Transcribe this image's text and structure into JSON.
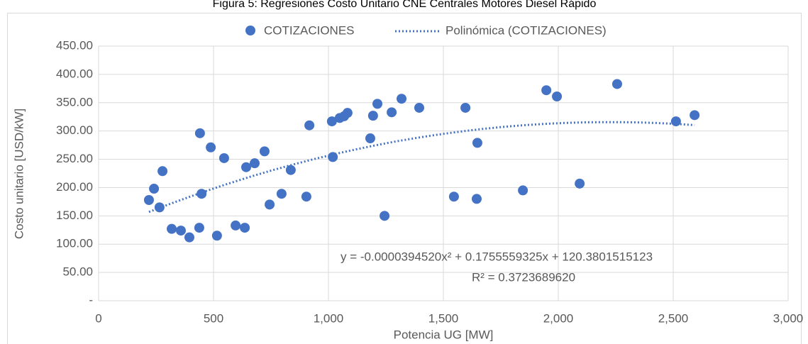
{
  "chart_data": {
    "type": "scatter",
    "title": "Figura 5: Regresiones Costo Unitario CNE Centrales Motores Diesel Rápido",
    "x_label": "Potencia UG [MW]",
    "y_label": "Costo unitario [USD/kW]",
    "series": [
      {
        "name": "COTIZACIONES",
        "color": "#4472c4",
        "x": [
          219,
          241,
          265,
          278,
          318,
          358,
          395,
          438,
          441,
          448,
          488,
          515,
          546,
          596,
          636,
          642,
          679,
          722,
          744,
          796,
          836,
          904,
          917,
          1015,
          1019,
          1049,
          1068,
          1083,
          1182,
          1194,
          1213,
          1244,
          1275,
          1318,
          1395,
          1546,
          1596,
          1645,
          1648,
          1846,
          1948,
          1994,
          2093,
          2256,
          2512,
          2593
        ],
        "values": [
          178,
          198,
          165,
          229,
          127,
          124,
          112,
          129,
          296,
          189,
          271,
          115,
          252,
          133,
          129,
          236,
          243,
          264,
          170,
          189,
          231,
          184,
          310,
          317,
          254,
          323,
          326,
          332,
          287,
          327,
          348,
          150,
          333,
          357,
          341,
          184,
          341,
          180,
          279,
          195,
          372,
          361,
          207,
          383,
          317,
          328
        ]
      }
    ],
    "trendline": {
      "name": "Polinómica (COTIZACIONES)",
      "color": "#4472c4",
      "coefficients": [
        -3.9452e-05,
        0.1755559325,
        120.3801515123
      ],
      "equation": "y = -0.0000394520x² + 0.1755559325x + 120.3801515123",
      "r2": "R² = 0.3723689620"
    },
    "xlim": [
      0,
      3000
    ],
    "xticks": [
      0,
      500,
      {
        "value": 1000,
        "label": "1,000"
      },
      {
        "value": 1500,
        "label": "1,500"
      },
      {
        "value": 2000,
        "label": "2,000"
      },
      {
        "value": 2500,
        "label": "2,500"
      },
      {
        "value": 3000,
        "label": "3,000"
      }
    ],
    "ylim": [
      0,
      450
    ],
    "yticks": [
      {
        "value": 0,
        "label": "-"
      },
      {
        "value": 50,
        "label": "50.00"
      },
      {
        "value": 100,
        "label": "100.00"
      },
      {
        "value": 150,
        "label": "150.00"
      },
      {
        "value": 200,
        "label": "200.00"
      },
      {
        "value": 250,
        "label": "250.00"
      },
      {
        "value": 300,
        "label": "300.00"
      },
      {
        "value": 350,
        "label": "350.00"
      },
      {
        "value": 400,
        "label": "400.00"
      },
      {
        "value": 450,
        "label": "450.00"
      }
    ],
    "grid": true,
    "legend": "top"
  }
}
